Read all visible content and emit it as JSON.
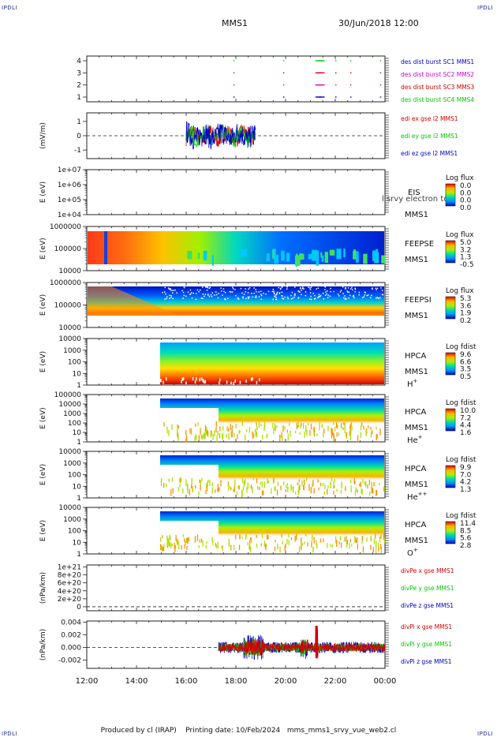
{
  "header": {
    "corner_label": "IPDLI",
    "spacecraft": "MMS1",
    "datetime": "30/Jun/2018 12:00"
  },
  "footer": {
    "produced_by": "Produced by cl (IRAP)",
    "printing_date": "Printing date: 10/Feb/2024",
    "filename": "mms_mms1_srvy_vue_web2.cl"
  },
  "time_axis": {
    "ticks": [
      "12:00",
      "14:00",
      "16:00",
      "18:00",
      "20:00",
      "22:00",
      "00:00"
    ],
    "range_hours": [
      12,
      24
    ]
  },
  "colors": {
    "red": "#d40000",
    "magenta": "#d000d0",
    "green": "#00c800",
    "blue": "#0000c8"
  },
  "chart_data": [
    {
      "type": "scatter",
      "panel": "burst",
      "yticks": [
        "1",
        "2",
        "3",
        "4"
      ],
      "ylim": [
        0.5,
        4.5
      ],
      "legend": [
        {
          "label": "des dist burst SC1 MMS1",
          "color": "#0000c8"
        },
        {
          "label": "des dist burst SC2 MMS2",
          "color": "#d000d0"
        },
        {
          "label": "des dist burst SC3 MMS3",
          "color": "#d40000"
        },
        {
          "label": "des dist burst SC4 MMS4",
          "color": "#00c800"
        }
      ],
      "burst_times_hours": [
        17.9,
        19.9,
        21.2,
        21.35,
        22.0,
        22.6,
        23.8
      ]
    },
    {
      "type": "line",
      "panel": "edi",
      "ylabel": "(mV/m)",
      "yticks": [
        "-1",
        "0",
        "1"
      ],
      "ylim": [
        -1.6,
        1.6
      ],
      "time_range_hours": [
        16.0,
        18.8
      ],
      "legend": [
        {
          "label": "edi ex gse l2 MMS1",
          "color": "#d40000"
        },
        {
          "label": "edi ey gse l2 MMS1",
          "color": "#00c800"
        },
        {
          "label": "edi ez gse l2 MMS1",
          "color": "#0000c8"
        }
      ]
    },
    {
      "type": "heatmap",
      "panel": "eis",
      "ylabel": "E (eV)",
      "yticks": [
        "1e+04",
        "1e+05",
        "1e+06",
        "1e+07"
      ],
      "instrument": "EIS",
      "overlay": "l srvy electron to",
      "sc": "MMS1",
      "cb_title": "Log flux",
      "cb_values": [
        "0.0",
        "0.0",
        "0.0",
        "0.0"
      ]
    },
    {
      "type": "heatmap",
      "panel": "feepse",
      "ylabel": "E (eV)",
      "yticks": [
        "10000",
        "100000",
        "1000000"
      ],
      "instrument": "FEEPSE",
      "sc": "MMS1",
      "cb_title": "Log flux",
      "cb_values": [
        "5.0",
        "3.2",
        "1.3",
        "-0.5"
      ]
    },
    {
      "type": "heatmap",
      "panel": "feepsi",
      "ylabel": "E (eV)",
      "yticks": [
        "10000",
        "100000",
        "1000000"
      ],
      "instrument": "FEEPSI",
      "sc": "MMS1",
      "cb_title": "Log flux",
      "cb_values": [
        "5.3",
        "3.6",
        "1.9",
        "0.2"
      ]
    },
    {
      "type": "heatmap",
      "panel": "hpca_h",
      "ylabel": "E (eV)",
      "yticks": [
        "1",
        "10",
        "100",
        "1000",
        "10000"
      ],
      "instrument": "HPCA",
      "sc": "MMS1",
      "species_base": "H",
      "species_sup": "+",
      "cb_title": "Log fdist",
      "cb_values": [
        "9.6",
        "6.6",
        "3.5",
        "0.5"
      ],
      "start_hour": 14.95
    },
    {
      "type": "heatmap",
      "panel": "hpca_he",
      "ylabel": "E (eV)",
      "yticks": [
        "1",
        "10",
        "100",
        "1000",
        "10000",
        "100000"
      ],
      "instrument": "HPCA",
      "sc": "MMS1",
      "species_base": "He",
      "species_sup": "+",
      "cb_title": "Log fdist",
      "cb_values": [
        "10.0",
        "7.2",
        "4.4",
        "1.6"
      ],
      "start_hour": 14.95
    },
    {
      "type": "heatmap",
      "panel": "hpca_hepp",
      "ylabel": "E (eV)",
      "yticks": [
        "1",
        "10",
        "100",
        "1000",
        "10000"
      ],
      "instrument": "HPCA",
      "sc": "MMS1",
      "species_base": "He",
      "species_sup": "++",
      "cb_title": "Log fdist",
      "cb_values": [
        "9.9",
        "7.0",
        "4.2",
        "1.3"
      ],
      "start_hour": 14.95
    },
    {
      "type": "heatmap",
      "panel": "hpca_o",
      "ylabel": "E (eV)",
      "yticks": [
        "1",
        "10",
        "100",
        "1000",
        "10000"
      ],
      "instrument": "HPCA",
      "sc": "MMS1",
      "species_base": "O",
      "species_sup": "+",
      "cb_title": "Log fdist",
      "cb_values": [
        "11.4",
        "8.5",
        "5.6",
        "2.8"
      ],
      "start_hour": 14.95
    },
    {
      "type": "line",
      "panel": "divpe",
      "ylabel": "(nPa/km)",
      "yticks": [
        "0",
        "2e+20",
        "4e+20",
        "6e+20",
        "8e+20",
        "1e+21"
      ],
      "ylim": [
        -1e+20,
        1.05e+21
      ],
      "legend": [
        {
          "label": "divPe x gse MMS1",
          "color": "#d40000"
        },
        {
          "label": "divPe y gse MMS1",
          "color": "#00c800"
        },
        {
          "label": "divPe z gse MMS1",
          "color": "#0000c8"
        }
      ]
    },
    {
      "type": "line",
      "panel": "divpi",
      "ylabel": "(nPa/km)",
      "yticks": [
        "-0.002",
        "0.000",
        "0.002",
        "0.004"
      ],
      "ylim": [
        -0.0033,
        0.0042
      ],
      "time_range_hours": [
        17.3,
        24
      ],
      "legend": [
        {
          "label": "divPi x gse MMS1",
          "color": "#d40000"
        },
        {
          "label": "divPi y gse MMS1",
          "color": "#00c800"
        },
        {
          "label": "divPi z gse MMS1",
          "color": "#0000c8"
        }
      ]
    }
  ]
}
